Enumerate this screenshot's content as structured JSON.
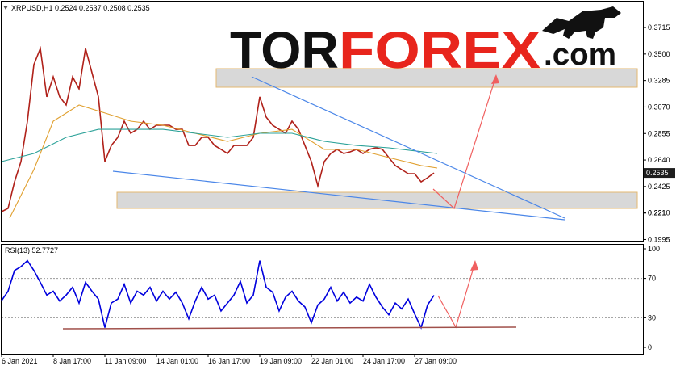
{
  "chart_data": [
    {
      "type": "line",
      "title": "XRPUSD,H1  0.2524 0.2537 0.2508 0.2535",
      "x": [
        0,
        8,
        16,
        24,
        32,
        40,
        48,
        56,
        64,
        72,
        80,
        88,
        96,
        104,
        112,
        120,
        128,
        136,
        144,
        152,
        160,
        168,
        176,
        184,
        192,
        200,
        208,
        216,
        224,
        232,
        240,
        248,
        256,
        264,
        272,
        280,
        288,
        296,
        304,
        312,
        320,
        328,
        336,
        344,
        352,
        360,
        368,
        376,
        384,
        392,
        400,
        408,
        416,
        424,
        432,
        440,
        448,
        456,
        464,
        472,
        480,
        488,
        496,
        504,
        512,
        520,
        528,
        536
      ],
      "xlim": [
        0,
        795
      ],
      "ylim": [
        0.1985,
        0.3925
      ],
      "yticks": [
        0.1995,
        0.221,
        {
          "value": 0.221,
          "label": "0.2210"
        },
        0.2425,
        {
          "value": 0.264,
          "label": "0.2640"
        },
        0.2855,
        {
          "value": 0.307,
          "label": "0.3070"
        },
        0.3285,
        {
          "value": 0.35,
          "label": "0.3500"
        },
        0.3715
      ],
      "last_price": 0.2535,
      "series": [
        {
          "color": "#b0211a",
          "values": [
            0.2221,
            0.2247,
            0.2463,
            0.2627,
            0.2955,
            0.3414,
            0.3545,
            0.3152,
            0.3315,
            0.3152,
            0.3086,
            0.3315,
            0.3217,
            0.3545,
            0.3348,
            0.3152,
            0.2627,
            0.2758,
            0.2824,
            0.2955,
            0.2857,
            0.2889,
            0.2955,
            0.2889,
            0.2922,
            0.2922,
            0.2922,
            0.2889,
            0.2889,
            0.2758,
            0.2758,
            0.2824,
            0.2824,
            0.2758,
            0.2726,
            0.2693,
            0.2758,
            0.2758,
            0.2758,
            0.2824,
            0.3152,
            0.2988,
            0.2922,
            0.2889,
            0.2857,
            0.2955,
            0.2889,
            0.2758,
            0.2627,
            0.2431,
            0.2627,
            0.2693,
            0.2726,
            0.2693,
            0.2706,
            0.2726,
            0.2693,
            0.2726,
            0.2739,
            0.2726,
            0.266,
            0.2595,
            0.2562,
            0.2529,
            0.2529,
            0.2463,
            0.2496,
            0.2535
          ]
        },
        {
          "color": "#e0a030",
          "x": [
            10,
            40,
            64,
            96,
            128,
            160,
            200,
            240,
            280,
            320,
            360,
            400,
            440,
            480,
            520,
            540
          ],
          "values": [
            0.2169,
            0.2562,
            0.2955,
            0.3086,
            0.3021,
            0.2955,
            0.2922,
            0.2857,
            0.2791,
            0.2857,
            0.2889,
            0.2726,
            0.2726,
            0.266,
            0.2595,
            0.2575
          ]
        },
        {
          "color": "#2aa198",
          "x": [
            0,
            40,
            80,
            120,
            160,
            200,
            240,
            280,
            320,
            360,
            400,
            440,
            480,
            540
          ],
          "values": [
            0.2627,
            0.2693,
            0.2824,
            0.2889,
            0.2889,
            0.2889,
            0.2857,
            0.2824,
            0.2857,
            0.2857,
            0.2791,
            0.2758,
            0.2739,
            0.2693
          ]
        }
      ]
    },
    {
      "type": "line",
      "title": "RSI(13) 52.7727",
      "xlim": [
        0,
        795
      ],
      "xticks": [
        {
          "value": 0,
          "label": "6 Jan 2021"
        },
        {
          "value": 64,
          "label": "8 Jan 17:00"
        },
        {
          "value": 128,
          "label": "11 Jan 09:00"
        },
        {
          "value": 192,
          "label": "14 Jan 01:00"
        },
        {
          "value": 256,
          "label": "16 Jan 17:00"
        },
        {
          "value": 320,
          "label": "19 Jan 09:00"
        },
        {
          "value": 384,
          "label": "22 Jan 01:00"
        },
        {
          "value": 448,
          "label": "24 Jan 17:00"
        },
        {
          "value": 512,
          "label": "27 Jan 09:00"
        }
      ],
      "ylim": [
        0,
        100
      ],
      "yticks": [
        0,
        30,
        70,
        100
      ],
      "grid": [
        30,
        70
      ],
      "series": [
        {
          "color": "#0000dd",
          "values": [
            47.5,
            57,
            78,
            82,
            88,
            78,
            66,
            53,
            57,
            47,
            53,
            61,
            45,
            66,
            57,
            49,
            20,
            45,
            49,
            64,
            45,
            57,
            53,
            61,
            47,
            57,
            49,
            56,
            45,
            29,
            47,
            61,
            49,
            53,
            37,
            45,
            53,
            67,
            45,
            53,
            88,
            61,
            56,
            37,
            51,
            57,
            47,
            41,
            25,
            43,
            49,
            61,
            47,
            56,
            45,
            51,
            47,
            64,
            51,
            41,
            33,
            45,
            39,
            49,
            34,
            20,
            43,
            52.8
          ]
        }
      ]
    }
  ],
  "logo": {
    "part1": "TOR",
    "part2": "FOREX",
    "part3": ".com"
  }
}
